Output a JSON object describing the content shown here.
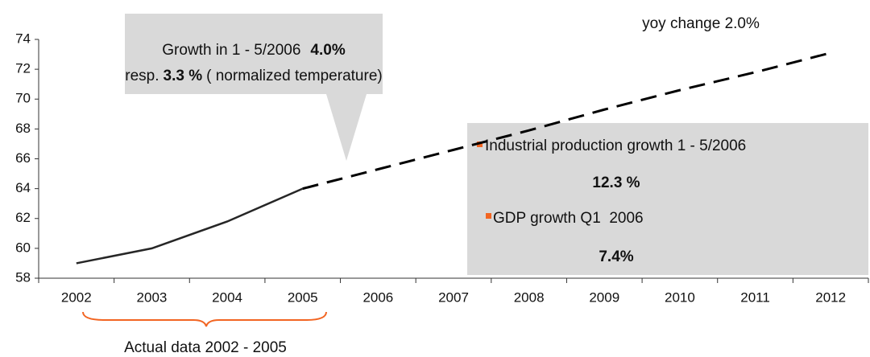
{
  "chart_data": {
    "type": "line",
    "categories": [
      "2002",
      "2003",
      "2004",
      "2005",
      "2006",
      "2007",
      "2008",
      "2009",
      "2010",
      "2011",
      "2012"
    ],
    "series": [
      {
        "color": "#262626",
        "dashed": false,
        "values": [
          59,
          60,
          61.8,
          64,
          null,
          null,
          null,
          null,
          null,
          null,
          null
        ]
      },
      {
        "color": "#000000",
        "dashed": true,
        "values": [
          null,
          null,
          null,
          64,
          65.3,
          66.6,
          67.9,
          69.3,
          70.6,
          71.8,
          73.1
        ]
      }
    ],
    "ylim": [
      58,
      74
    ],
    "yticks": [
      58,
      60,
      62,
      64,
      66,
      68,
      70,
      72,
      74
    ],
    "grid": false,
    "top_note": "yoy change 2.0%",
    "callout": {
      "line1": "Growth in 1 - 5/2006",
      "line1_bold": "4.0%",
      "line2_start": "resp.",
      "line2_bold": "3.3 %",
      "line2_end": "( normalized temperature)"
    },
    "info_box": [
      {
        "label": "Industrial production growth 1 - 5/2006",
        "value": "12.3 %"
      },
      {
        "label": "GDP growth Q1  2006",
        "value": "7.4%"
      }
    ],
    "bracket_label": "Actual data 2002 - 2005"
  }
}
